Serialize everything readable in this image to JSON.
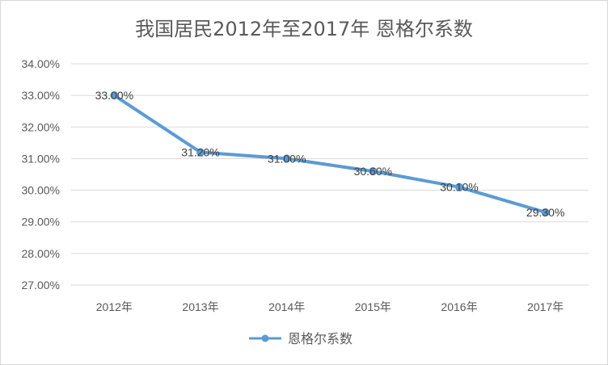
{
  "chart_data": {
    "type": "line",
    "title": "我国居民2012年至2017年 恩格尔系数",
    "xlabel": "",
    "ylabel": "",
    "categories": [
      "2012年",
      "2013年",
      "2014年",
      "2015年",
      "2016年",
      "2017年"
    ],
    "series": [
      {
        "name": "恩格尔系数",
        "values": [
          33.0,
          31.2,
          31.0,
          30.6,
          30.1,
          29.3
        ],
        "labels": [
          "33.00%",
          "31.20%",
          "31.00%",
          "30.60%",
          "30.10%",
          "29.30%"
        ],
        "color": "#5b9bd5"
      }
    ],
    "ylim": [
      27,
      34
    ],
    "yticks": [
      "27.00%",
      "28.00%",
      "29.00%",
      "30.00%",
      "31.00%",
      "32.00%",
      "33.00%",
      "34.00%"
    ],
    "grid": true,
    "legend": "bottom"
  }
}
